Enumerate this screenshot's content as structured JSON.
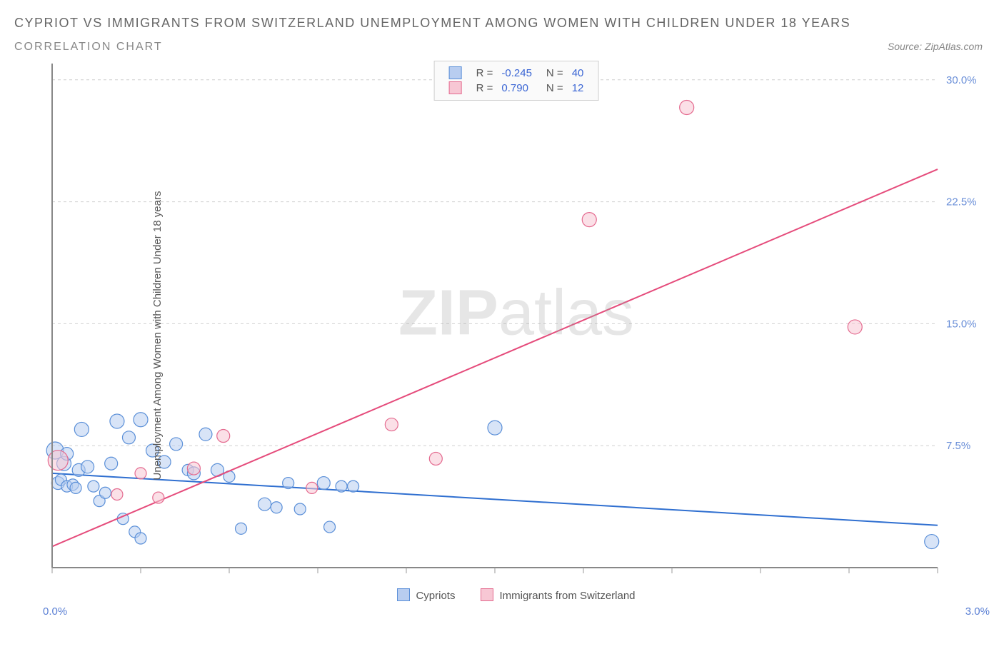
{
  "title": "CYPRIOT VS IMMIGRANTS FROM SWITZERLAND UNEMPLOYMENT AMONG WOMEN WITH CHILDREN UNDER 18 YEARS",
  "subtitle": "CORRELATION CHART",
  "source_label": "Source:",
  "source_name": "ZipAtlas.com",
  "y_axis_label": "Unemployment Among Women with Children Under 18 years",
  "watermark_a": "ZIP",
  "watermark_b": "atlas",
  "chart": {
    "type": "scatter",
    "background": "#ffffff",
    "axis_color": "#888888",
    "grid_color": "#cfcfcf",
    "x": {
      "min": 0.0,
      "max": 3.0,
      "tick_step": 0.3,
      "label_min": "0.0%",
      "label_max": "3.0%",
      "label_color": "#5a7fd4"
    },
    "y": {
      "min": 0.0,
      "max": 31.0,
      "ticks": [
        7.5,
        15.0,
        22.5,
        30.0
      ],
      "tick_labels": [
        "7.5%",
        "15.0%",
        "22.5%",
        "30.0%"
      ],
      "label_color": "#6a8fd8"
    },
    "series": [
      {
        "id": "cypriots",
        "label": "Cypriots",
        "marker_fill": "#b8cdf0",
        "marker_stroke": "#5a8fd8",
        "marker_fill_opacity": 0.55,
        "marker_r": 9,
        "line_color": "#2f6fd0",
        "line_width": 2,
        "R": "-0.245",
        "N": "40",
        "trend": {
          "x1": 0.0,
          "y1": 5.8,
          "x2": 3.0,
          "y2": 2.6
        },
        "points": [
          {
            "x": 0.01,
            "y": 7.2,
            "r": 12
          },
          {
            "x": 0.02,
            "y": 5.2,
            "r": 9
          },
          {
            "x": 0.03,
            "y": 5.4,
            "r": 8
          },
          {
            "x": 0.04,
            "y": 6.4,
            "r": 10
          },
          {
            "x": 0.05,
            "y": 5.0,
            "r": 8
          },
          {
            "x": 0.05,
            "y": 7.0,
            "r": 9
          },
          {
            "x": 0.07,
            "y": 5.1,
            "r": 8
          },
          {
            "x": 0.08,
            "y": 4.9,
            "r": 8
          },
          {
            "x": 0.09,
            "y": 6.0,
            "r": 9
          },
          {
            "x": 0.1,
            "y": 8.5,
            "r": 10
          },
          {
            "x": 0.12,
            "y": 6.2,
            "r": 9
          },
          {
            "x": 0.14,
            "y": 5.0,
            "r": 8
          },
          {
            "x": 0.16,
            "y": 4.1,
            "r": 8
          },
          {
            "x": 0.18,
            "y": 4.6,
            "r": 8
          },
          {
            "x": 0.2,
            "y": 6.4,
            "r": 9
          },
          {
            "x": 0.22,
            "y": 9.0,
            "r": 10
          },
          {
            "x": 0.24,
            "y": 3.0,
            "r": 8
          },
          {
            "x": 0.26,
            "y": 8.0,
            "r": 9
          },
          {
            "x": 0.28,
            "y": 2.2,
            "r": 8
          },
          {
            "x": 0.3,
            "y": 1.8,
            "r": 8
          },
          {
            "x": 0.3,
            "y": 9.1,
            "r": 10
          },
          {
            "x": 0.34,
            "y": 7.2,
            "r": 9
          },
          {
            "x": 0.38,
            "y": 6.5,
            "r": 9
          },
          {
            "x": 0.42,
            "y": 7.6,
            "r": 9
          },
          {
            "x": 0.46,
            "y": 6.0,
            "r": 8
          },
          {
            "x": 0.48,
            "y": 5.8,
            "r": 9
          },
          {
            "x": 0.52,
            "y": 8.2,
            "r": 9
          },
          {
            "x": 0.56,
            "y": 6.0,
            "r": 9
          },
          {
            "x": 0.6,
            "y": 5.6,
            "r": 8
          },
          {
            "x": 0.64,
            "y": 2.4,
            "r": 8
          },
          {
            "x": 0.72,
            "y": 3.9,
            "r": 9
          },
          {
            "x": 0.76,
            "y": 3.7,
            "r": 8
          },
          {
            "x": 0.8,
            "y": 5.2,
            "r": 8
          },
          {
            "x": 0.84,
            "y": 3.6,
            "r": 8
          },
          {
            "x": 0.92,
            "y": 5.2,
            "r": 9
          },
          {
            "x": 0.94,
            "y": 2.5,
            "r": 8
          },
          {
            "x": 0.98,
            "y": 5.0,
            "r": 8
          },
          {
            "x": 1.02,
            "y": 5.0,
            "r": 8
          },
          {
            "x": 1.5,
            "y": 8.6,
            "r": 10
          },
          {
            "x": 2.98,
            "y": 1.6,
            "r": 10
          }
        ]
      },
      {
        "id": "swiss",
        "label": "Immigrants from Switzerland",
        "marker_fill": "#f7c7d4",
        "marker_stroke": "#e46a8f",
        "marker_fill_opacity": 0.55,
        "marker_r": 9,
        "line_color": "#e54b7b",
        "line_width": 2,
        "R": "0.790",
        "N": "12",
        "trend": {
          "x1": 0.0,
          "y1": 1.3,
          "x2": 3.0,
          "y2": 24.5
        },
        "points": [
          {
            "x": 0.02,
            "y": 6.6,
            "r": 14
          },
          {
            "x": 0.22,
            "y": 4.5,
            "r": 8
          },
          {
            "x": 0.3,
            "y": 5.8,
            "r": 8
          },
          {
            "x": 0.36,
            "y": 4.3,
            "r": 8
          },
          {
            "x": 0.48,
            "y": 6.1,
            "r": 9
          },
          {
            "x": 0.58,
            "y": 8.1,
            "r": 9
          },
          {
            "x": 0.88,
            "y": 4.9,
            "r": 8
          },
          {
            "x": 1.15,
            "y": 8.8,
            "r": 9
          },
          {
            "x": 1.3,
            "y": 6.7,
            "r": 9
          },
          {
            "x": 1.82,
            "y": 21.4,
            "r": 10
          },
          {
            "x": 2.15,
            "y": 28.3,
            "r": 10
          },
          {
            "x": 2.72,
            "y": 14.8,
            "r": 10
          }
        ]
      }
    ]
  },
  "rn_legend_labels": {
    "R": "R =",
    "N": "N ="
  },
  "bottom_legend": {
    "items": [
      {
        "label": "Cypriots",
        "fill": "#b8cdf0",
        "stroke": "#5a8fd8"
      },
      {
        "label": "Immigrants from Switzerland",
        "fill": "#f7c7d4",
        "stroke": "#e46a8f"
      }
    ]
  }
}
